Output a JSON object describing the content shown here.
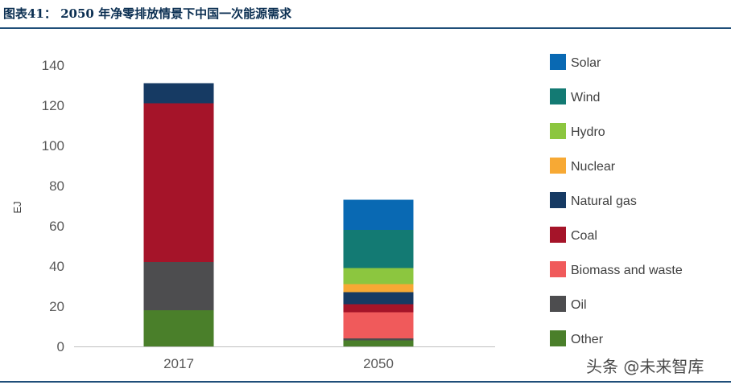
{
  "header": {
    "title": "图表41：  2050 年净零排放情景下中国一次能源需求"
  },
  "watermark": "头条 @未来智库",
  "chart_data": {
    "type": "bar",
    "stacked": true,
    "ylabel": "EJ",
    "ylim": [
      0,
      140
    ],
    "yticks": [
      0,
      20,
      40,
      60,
      80,
      100,
      120,
      140
    ],
    "categories": [
      "2017",
      "2050"
    ],
    "grid": false,
    "legend_position": "right",
    "series": [
      {
        "name": "Other",
        "color": "#4a7f2a",
        "values": [
          18,
          3
        ]
      },
      {
        "name": "Oil",
        "color": "#4d4d4f",
        "values": [
          24,
          1
        ]
      },
      {
        "name": "Biomass and waste",
        "color": "#f05a5b",
        "values": [
          0,
          13
        ]
      },
      {
        "name": "Coal",
        "color": "#a51429",
        "values": [
          79,
          4
        ]
      },
      {
        "name": "Natural gas",
        "color": "#163a63",
        "values": [
          10,
          6
        ]
      },
      {
        "name": "Nuclear",
        "color": "#f7a934",
        "values": [
          0,
          4
        ]
      },
      {
        "name": "Hydro",
        "color": "#8cc63f",
        "values": [
          0,
          8
        ]
      },
      {
        "name": "Wind",
        "color": "#137a73",
        "values": [
          0,
          19
        ]
      },
      {
        "name": "Solar",
        "color": "#0969b3",
        "values": [
          0,
          15
        ]
      }
    ]
  }
}
